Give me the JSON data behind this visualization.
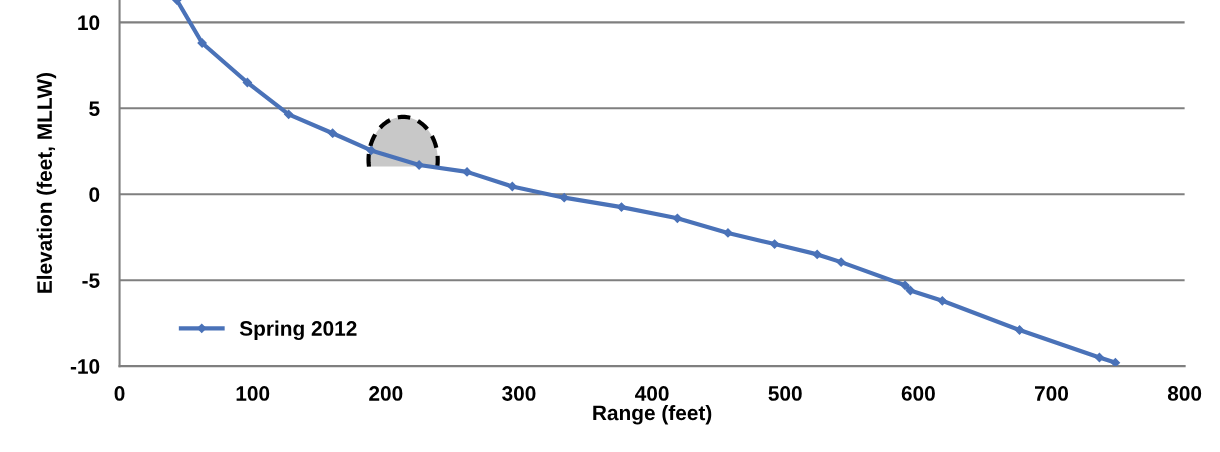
{
  "chart_data": {
    "type": "line",
    "xlabel": "Range (feet)",
    "ylabel": "Elevation (feet, MLLW)",
    "x": [
      43,
      62,
      96,
      127,
      160,
      189,
      225,
      261,
      295,
      334,
      377,
      419,
      457,
      492,
      524,
      542,
      590,
      594,
      618,
      676,
      736,
      748
    ],
    "series": [
      {
        "name": "Spring 2012",
        "color": "#4a72b8",
        "values": [
          11.3,
          8.8,
          6.5,
          4.65,
          3.55,
          2.55,
          1.7,
          1.3,
          0.45,
          -0.2,
          -0.75,
          -1.4,
          -2.25,
          -2.9,
          -3.5,
          -3.95,
          -5.3,
          -5.6,
          -6.2,
          -7.9,
          -9.5,
          -9.8
        ]
      }
    ],
    "xlim": [
      0,
      800
    ],
    "xticks": [
      0,
      100,
      200,
      300,
      400,
      500,
      600,
      700,
      800
    ],
    "ylim": [
      -10,
      11.3
    ],
    "yticks": [
      -10,
      -5,
      0,
      5,
      10
    ],
    "grid": "y",
    "legend": "bottom left",
    "marker": "diamond",
    "line_style": "solid"
  }
}
